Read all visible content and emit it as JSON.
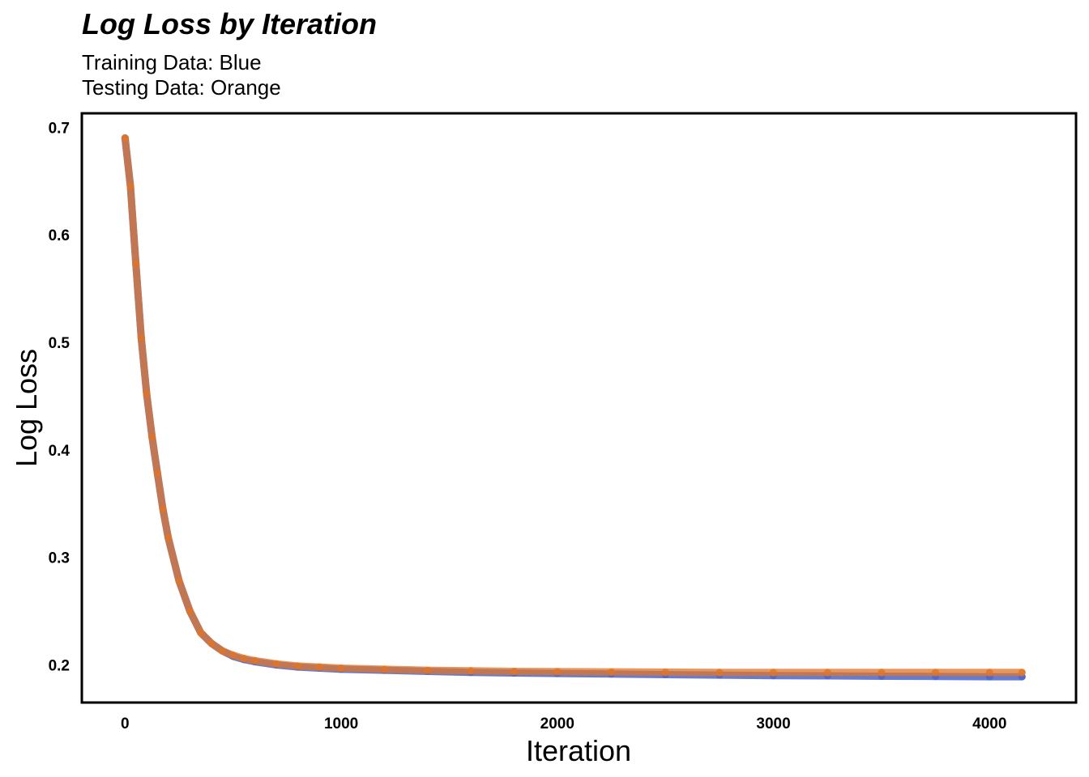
{
  "chart_data": {
    "type": "scatter",
    "title": "Log Loss by Iteration",
    "subtitle": [
      "Training Data: Blue",
      "Testing Data: Orange"
    ],
    "xlabel": "Iteration",
    "ylabel": "Log Loss",
    "xlim": [
      -200,
      4400
    ],
    "ylim": [
      0.165,
      0.713
    ],
    "xticks": [
      0,
      1000,
      2000,
      3000,
      4000
    ],
    "xtick_labels": [
      "0",
      "1000",
      "2000",
      "3000",
      "4000"
    ],
    "yticks": [
      0.2,
      0.3,
      0.4,
      0.5,
      0.6,
      0.7
    ],
    "ytick_labels": [
      "0.2",
      "0.3",
      "0.4",
      "0.5",
      "0.6",
      "0.7"
    ],
    "grid": false,
    "legend": "none",
    "series": [
      {
        "color": "#4a65c9",
        "x": [
          0,
          25,
          50,
          75,
          100,
          125,
          150,
          175,
          200,
          250,
          300,
          350,
          400,
          450,
          500,
          550,
          600,
          700,
          800,
          900,
          1000,
          1200,
          1400,
          1600,
          1800,
          2000,
          2250,
          2500,
          2750,
          3000,
          3250,
          3500,
          3750,
          4000,
          4150
        ],
        "y": [
          0.69,
          0.645,
          0.573,
          0.504,
          0.452,
          0.412,
          0.378,
          0.345,
          0.318,
          0.278,
          0.25,
          0.23,
          0.22,
          0.213,
          0.208,
          0.205,
          0.203,
          0.2,
          0.198,
          0.197,
          0.196,
          0.195,
          0.194,
          0.193,
          0.1925,
          0.192,
          0.1915,
          0.191,
          0.1905,
          0.19,
          0.1898,
          0.1895,
          0.1893,
          0.189,
          0.189
        ]
      },
      {
        "color": "#e07628",
        "x": [
          0,
          25,
          50,
          75,
          100,
          125,
          150,
          175,
          200,
          250,
          300,
          350,
          400,
          450,
          500,
          550,
          600,
          700,
          800,
          900,
          1000,
          1200,
          1400,
          1600,
          1800,
          2000,
          2250,
          2500,
          2750,
          3000,
          3250,
          3500,
          3750,
          4000,
          4150
        ],
        "y": [
          0.69,
          0.645,
          0.573,
          0.504,
          0.452,
          0.412,
          0.378,
          0.345,
          0.318,
          0.278,
          0.25,
          0.23,
          0.22,
          0.213,
          0.209,
          0.206,
          0.204,
          0.201,
          0.199,
          0.198,
          0.197,
          0.196,
          0.195,
          0.1945,
          0.194,
          0.1938,
          0.1935,
          0.1933,
          0.193,
          0.193,
          0.193,
          0.193,
          0.193,
          0.193,
          0.193
        ]
      }
    ]
  }
}
